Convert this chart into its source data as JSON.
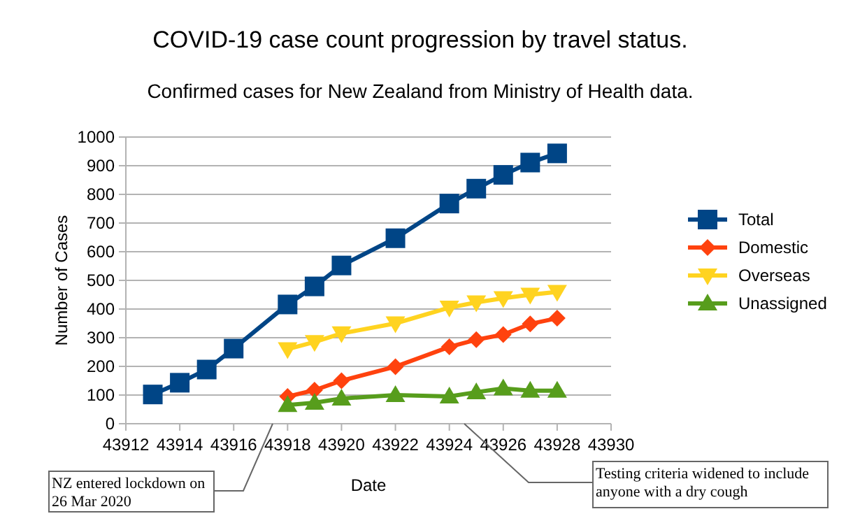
{
  "chart_data": {
    "type": "line",
    "title": "COVID-19 case count progression by travel status.",
    "subtitle": "Confirmed cases for New Zealand from Ministry of Health data.",
    "xlabel": "Date",
    "ylabel": "Number of Cases",
    "xlim": [
      43912,
      43930
    ],
    "xticks": [
      43912,
      43914,
      43916,
      43918,
      43920,
      43922,
      43924,
      43926,
      43928,
      43930
    ],
    "ylim": [
      0,
      1000
    ],
    "yticks": [
      0,
      100,
      200,
      300,
      400,
      500,
      600,
      700,
      800,
      900,
      1000
    ],
    "grid": "y",
    "legend": "right",
    "series": [
      {
        "name": "Total",
        "color": "#004586",
        "marker": "square",
        "x": [
          43913,
          43914,
          43915,
          43916,
          43918,
          43919,
          43920,
          43922,
          43924,
          43925,
          43926,
          43927,
          43928
        ],
        "values": [
          102,
          143,
          189,
          262,
          416,
          479,
          552,
          647,
          768,
          820,
          868,
          911,
          943
        ]
      },
      {
        "name": "Domestic",
        "color": "#ff420e",
        "marker": "diamond",
        "x": [
          43918,
          43919,
          43920,
          43922,
          43924,
          43925,
          43926,
          43927,
          43928
        ],
        "values": [
          95,
          117,
          150,
          199,
          268,
          293,
          311,
          348,
          368
        ]
      },
      {
        "name": "Overseas",
        "color": "#ffd320",
        "marker": "triangle-down",
        "x": [
          43918,
          43919,
          43920,
          43922,
          43924,
          43925,
          43926,
          43927,
          43928
        ],
        "values": [
          260,
          285,
          315,
          350,
          405,
          423,
          438,
          450,
          460
        ]
      },
      {
        "name": "Unassigned",
        "color": "#579d1c",
        "marker": "triangle",
        "x": [
          43918,
          43919,
          43920,
          43922,
          43924,
          43925,
          43926,
          43927,
          43928
        ],
        "values": [
          65,
          73,
          88,
          100,
          95,
          110,
          123,
          115,
          115
        ]
      }
    ],
    "annotations": [
      "NZ entered lockdown on\n26 Mar 2020",
      "Testing criteria widened to include\nanyone with a dry cough"
    ]
  }
}
